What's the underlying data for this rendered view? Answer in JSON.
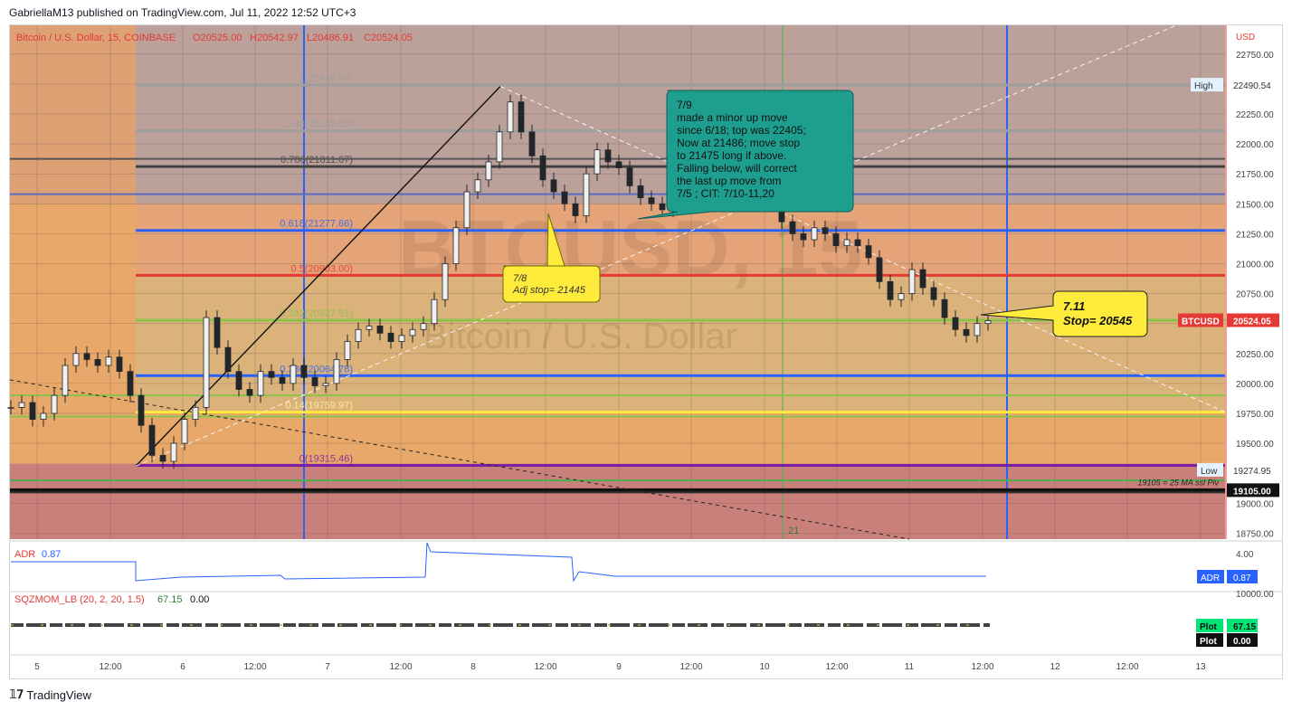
{
  "header": {
    "published": "GabriellaM13 published on TradingView.com, Jul 11, 2022 12:52 UTC+3"
  },
  "footer": {
    "brand": "TradingView",
    "logo_icon": "tradingview-logo-icon"
  },
  "colors": {
    "candle": "#22262b",
    "blue": "#2962ff",
    "red": "#e53935",
    "green": "#8bc34a",
    "yellow": "#ffeb3b",
    "purple": "#7b1fa2",
    "teal_note": "#1e9e8f",
    "yellow_note": "#ffeb3b"
  },
  "chart_data": {
    "type": "candlestick",
    "symbol_line": {
      "name": "Bitcoin / U.S. Dollar, 15, COINBASE",
      "o": "O20525.00",
      "h": "H20542.97",
      "l": "L20486.91",
      "c": "C20524.05"
    },
    "watermark": {
      "ticker": "BTCUSD, 15",
      "name": "Bitcoin / U.S. Dollar"
    },
    "currency": "USD",
    "ylim": [
      18700,
      22990
    ],
    "y_ticks": [
      22750,
      22500,
      22250,
      22000,
      21750,
      21500,
      21250,
      21000,
      20750,
      20500,
      20250,
      20000,
      19750,
      19500,
      19000,
      18750
    ],
    "y_tick_labels": [
      "22750.00",
      "22500.00",
      "22250.00",
      "22000.00",
      "21750.00",
      "21500.00",
      "21250.00",
      "21000.00",
      "20750.00",
      "20500.00",
      "20250.00",
      "20000.00",
      "19750.00",
      "19500.00",
      "19000.00",
      "18750.00"
    ],
    "x_tick_labels": [
      "5",
      "12:00",
      "6",
      "12:00",
      "7",
      "12:00",
      "8",
      "12:00",
      "9",
      "12:00",
      "10",
      "12:00",
      "11",
      "12:00",
      "12",
      "12:00",
      "13"
    ],
    "price_tags": [
      {
        "label": "High",
        "value": "22490.54"
      },
      {
        "label": "Low",
        "value": "19274.95"
      },
      {
        "label": "BTCUSD",
        "value": "20524.05"
      },
      {
        "label": "",
        "value": "19105.00"
      }
    ],
    "fib_levels": [
      {
        "label": "1(22490.54)",
        "price": 22490.54,
        "color": "#9e9e9e"
      },
      {
        "label": "0.88(22109.53)",
        "price": 22109.53,
        "color": "#9e9e9e"
      },
      {
        "label": "0.786(21811.07)",
        "price": 21811.07,
        "color": "#424242"
      },
      {
        "label": "0.618(21277.66)",
        "price": 21277.66,
        "color": "#2962ff"
      },
      {
        "label": "0.5(20903.00)",
        "price": 20903.0,
        "color": "#e53935"
      },
      {
        "label": "0.382(20527.51)",
        "price": 20527.51,
        "color": "#8bc34a"
      },
      {
        "label": "0.236(20064.78)",
        "price": 20064.78,
        "color": "#2962ff"
      },
      {
        "label": "0.14(19759.97)",
        "price": 19759.97,
        "color": "#ffeb3b"
      },
      {
        "label": "0(19315.46)",
        "price": 19315.46,
        "color": "#7b1fa2"
      }
    ],
    "extra_lines": [
      19900,
      19723,
      19190,
      19105,
      19090,
      21580,
      21875
    ],
    "annotations": {
      "note_79": "7/9\nmade a minor up move\n since 6/18; top was 22405;\nNow at 21486; move stop\n to 21475 long if above.\nFalling below, will correct\n the last up move from\n7/5 ; CIT: 7/10-11,20",
      "note_78": "7/8\nAdj stop= 21445",
      "note_711": "7.11\nStop= 20545",
      "ma_label": "19105 = 25 MA ssl Piv",
      "count_label": "21"
    },
    "series": [
      {
        "name": "BTCUSD",
        "x": [
          0,
          12,
          24,
          36,
          48,
          60,
          72,
          84,
          96,
          108,
          120,
          132,
          144,
          156,
          168,
          180,
          192,
          204,
          216,
          228,
          240,
          252,
          264,
          276,
          288,
          300,
          312,
          324,
          336,
          348,
          360,
          372,
          384,
          396,
          408,
          420,
          432,
          444,
          456,
          468,
          480,
          492,
          504,
          516,
          528,
          540,
          552,
          564,
          576,
          588,
          600,
          612,
          624,
          636,
          648,
          660,
          672,
          684,
          696,
          708,
          720,
          732,
          744,
          756,
          768,
          780,
          792,
          804,
          816,
          828,
          840,
          852,
          864,
          876,
          888,
          900,
          912,
          924,
          936,
          948,
          960,
          972,
          984,
          996,
          1008,
          1020,
          1032,
          1044,
          1056,
          1068,
          1080
        ],
        "close": [
          19800,
          19840,
          19700,
          19750,
          19900,
          20150,
          20250,
          20200,
          20150,
          20220,
          20100,
          19900,
          19650,
          19400,
          19350,
          19500,
          19700,
          19800,
          20550,
          20300,
          20100,
          19950,
          19900,
          20100,
          20050,
          20000,
          20150,
          20050,
          19980,
          20000,
          20200,
          20350,
          20450,
          20480,
          20420,
          20350,
          20400,
          20450,
          20500,
          20700,
          21000,
          21300,
          21600,
          21700,
          21850,
          22100,
          22350,
          22100,
          21900,
          21700,
          21600,
          21500,
          21400,
          21750,
          21950,
          21850,
          21800,
          21650,
          21550,
          21500,
          21450,
          21700,
          21650,
          21800,
          21600,
          21650,
          21750,
          21850,
          21700,
          21650,
          21500,
          21350,
          21250,
          21200,
          21300,
          21250,
          21150,
          21200,
          21150,
          21050,
          20850,
          20700,
          20750,
          20950,
          20800,
          20700,
          20550,
          20450,
          20400,
          20500,
          20524
        ]
      }
    ],
    "indicators": [
      {
        "name": "ADR",
        "value": "0.87",
        "label": "ADR",
        "axis_label": "4.00",
        "tag": "ADR",
        "tag_value": "0.87"
      },
      {
        "name": "SQZMOM_LB (20, 2, 20, 1.5)",
        "v1": "67.15",
        "v2": "0.00",
        "axis_label": "10000.00",
        "tags": [
          {
            "label": "Plot",
            "value": "67.15"
          },
          {
            "label": "Plot",
            "value": "0.00"
          }
        ]
      }
    ]
  }
}
